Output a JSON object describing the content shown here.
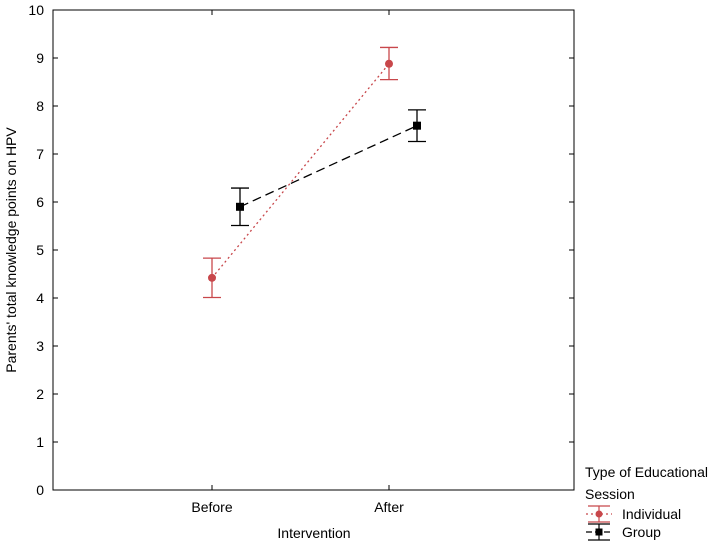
{
  "chart_data": {
    "type": "line",
    "categories": [
      "Before",
      "After"
    ],
    "series": [
      {
        "name": "Individual",
        "values": [
          4.42,
          8.88
        ],
        "ci_low": [
          4.01,
          8.55
        ],
        "ci_high": [
          4.83,
          9.22
        ],
        "color": "#c8474b",
        "line_style": "dotted",
        "marker": "circle"
      },
      {
        "name": "Group",
        "values": [
          5.9,
          7.59
        ],
        "ci_low": [
          5.51,
          7.26
        ],
        "ci_high": [
          6.29,
          7.92
        ],
        "color": "#000000",
        "line_style": "dashed",
        "marker": "square"
      }
    ],
    "xlabel": "Intervention",
    "ylabel": "Parents' total knowledge points on HPV",
    "ylim": [
      0,
      10
    ],
    "yticks": [
      0,
      1,
      2,
      3,
      4,
      5,
      6,
      7,
      8,
      9,
      10
    ],
    "grid": false,
    "legend": {
      "title_line1": "Type of Educational",
      "title_line2": "Session",
      "placement": "bottom-right outside"
    }
  }
}
